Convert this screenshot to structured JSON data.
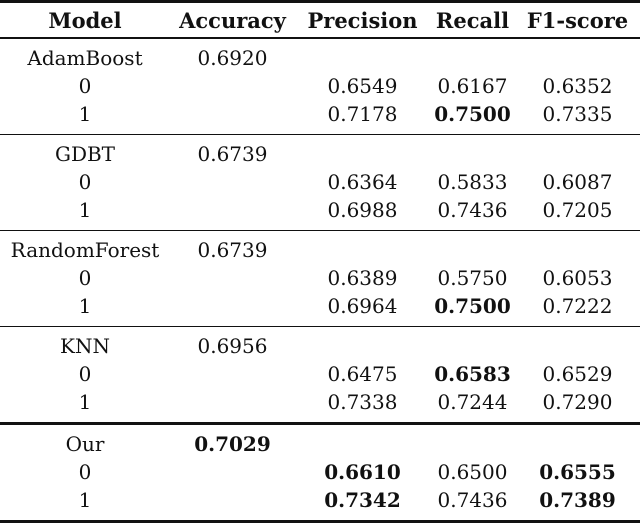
{
  "colors": {
    "background": "#ffffff",
    "text": "#111111",
    "rule": "#111111"
  },
  "table": {
    "headers": [
      "Model",
      "Accuracy",
      "Precision",
      "Recall",
      "F1-score"
    ],
    "sections": [
      {
        "model": "AdamBoost",
        "accuracy": {
          "value": "0.6920",
          "bold": false
        },
        "rows": [
          {
            "label": "0",
            "cells": [
              {
                "value": "0.6549",
                "bold": false
              },
              {
                "value": "0.6167",
                "bold": false
              },
              {
                "value": "0.6352",
                "bold": false
              }
            ]
          },
          {
            "label": "1",
            "cells": [
              {
                "value": "0.7178",
                "bold": false
              },
              {
                "value": "0.7500",
                "bold": true
              },
              {
                "value": "0.7335",
                "bold": false
              }
            ]
          }
        ]
      },
      {
        "model": "GDBT",
        "accuracy": {
          "value": "0.6739",
          "bold": false
        },
        "rows": [
          {
            "label": "0",
            "cells": [
              {
                "value": "0.6364",
                "bold": false
              },
              {
                "value": "0.5833",
                "bold": false
              },
              {
                "value": "0.6087",
                "bold": false
              }
            ]
          },
          {
            "label": "1",
            "cells": [
              {
                "value": "0.6988",
                "bold": false
              },
              {
                "value": "0.7436",
                "bold": false
              },
              {
                "value": "0.7205",
                "bold": false
              }
            ]
          }
        ]
      },
      {
        "model": "RandomForest",
        "accuracy": {
          "value": "0.6739",
          "bold": false
        },
        "rows": [
          {
            "label": "0",
            "cells": [
              {
                "value": "0.6389",
                "bold": false
              },
              {
                "value": "0.5750",
                "bold": false
              },
              {
                "value": "0.6053",
                "bold": false
              }
            ]
          },
          {
            "label": "1",
            "cells": [
              {
                "value": "0.6964",
                "bold": false
              },
              {
                "value": "0.7500",
                "bold": true
              },
              {
                "value": "0.7222",
                "bold": false
              }
            ]
          }
        ]
      },
      {
        "model": "KNN",
        "accuracy": {
          "value": "0.6956",
          "bold": false
        },
        "rows": [
          {
            "label": "0",
            "cells": [
              {
                "value": "0.6475",
                "bold": false
              },
              {
                "value": "0.6583",
                "bold": true
              },
              {
                "value": "0.6529",
                "bold": false
              }
            ]
          },
          {
            "label": "1",
            "cells": [
              {
                "value": "0.7338",
                "bold": false
              },
              {
                "value": "0.7244",
                "bold": false
              },
              {
                "value": "0.7290",
                "bold": false
              }
            ]
          }
        ]
      },
      {
        "model": "Our",
        "accuracy": {
          "value": "0.7029",
          "bold": true
        },
        "rows": [
          {
            "label": "0",
            "cells": [
              {
                "value": "0.6610",
                "bold": true
              },
              {
                "value": "0.6500",
                "bold": false
              },
              {
                "value": "0.6555",
                "bold": true
              }
            ]
          },
          {
            "label": "1",
            "cells": [
              {
                "value": "0.7342",
                "bold": true
              },
              {
                "value": "0.7436",
                "bold": false
              },
              {
                "value": "0.7389",
                "bold": true
              }
            ]
          }
        ]
      }
    ]
  }
}
